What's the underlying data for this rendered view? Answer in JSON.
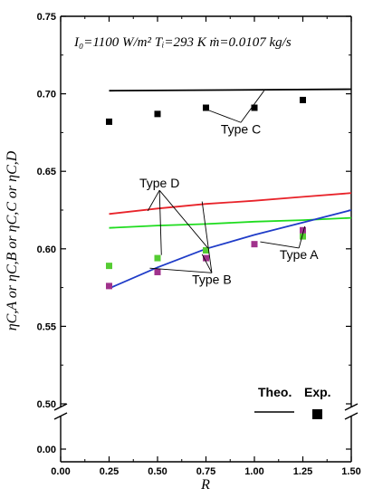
{
  "chart_data": {
    "type": "line",
    "header": "I₀=1100 W/m²   Tᵢ=293 K   ṁ=0.0107 kg/s",
    "xlabel": "R",
    "ylabel": "ηC,A  or  ηC,B  or  ηC,C  or  ηC,D",
    "xlim": [
      0,
      1.5
    ],
    "ylim_upper": [
      0.5,
      0.75
    ],
    "ylim_lower": [
      0.0,
      0.0
    ],
    "y_axis_broken": true,
    "grid": false,
    "x_ticks": [
      "0.00",
      "0.25",
      "0.50",
      "0.75",
      "1.00",
      "1.25",
      "1.50"
    ],
    "y_ticks_upper": [
      "0.50",
      "0.55",
      "0.60",
      "0.65",
      "0.70",
      "0.75"
    ],
    "y_ticks_lower": [
      "0.00"
    ],
    "theoretical": [
      {
        "name": "Type C",
        "color": "#000000",
        "x": [
          0.25,
          1.5
        ],
        "y": [
          0.702,
          0.703
        ]
      },
      {
        "name": "Type D",
        "color": "#e8232a",
        "x": [
          0.25,
          0.5,
          0.75,
          1.0,
          1.25,
          1.5
        ],
        "y": [
          0.6225,
          0.626,
          0.629,
          0.631,
          0.6335,
          0.636
        ]
      },
      {
        "name": "Type D",
        "color": "#1fdc1f",
        "x": [
          0.25,
          0.5,
          0.75,
          1.0,
          1.25,
          1.5
        ],
        "y": [
          0.6135,
          0.615,
          0.616,
          0.6175,
          0.6185,
          0.62
        ]
      },
      {
        "name": "Type A/B",
        "color": "#1f3cc8",
        "x": [
          0.25,
          0.5,
          0.75,
          1.0,
          1.25,
          1.5
        ],
        "y": [
          0.5745,
          0.588,
          0.6,
          0.609,
          0.617,
          0.625
        ]
      }
    ],
    "experimental": [
      {
        "name": "Type C",
        "color": "#000000",
        "x": [
          0.25,
          0.5,
          0.75,
          1.0,
          1.25
        ],
        "y": [
          0.682,
          0.687,
          0.691,
          0.691,
          0.696
        ]
      },
      {
        "name": "green",
        "color": "#55cc33",
        "x": [
          0.25,
          0.5,
          0.75,
          1.25
        ],
        "y": [
          0.589,
          0.594,
          0.599,
          0.608
        ]
      },
      {
        "name": "magenta",
        "color": "#a0328c",
        "x": [
          0.25,
          0.5,
          0.75,
          1.0,
          1.25
        ],
        "y": [
          0.576,
          0.585,
          0.594,
          0.603,
          0.612
        ]
      }
    ],
    "annotations": [
      {
        "text": "Type C",
        "x": 0.93,
        "y": 0.6745,
        "arrow_to": [
          [
            0.74,
            0.6905
          ],
          [
            1.05,
            0.702
          ]
        ]
      },
      {
        "text": "Type D",
        "x": 0.51,
        "y": 0.6395,
        "arrow_to": [
          [
            0.45,
            0.6245
          ],
          [
            0.52,
            0.596
          ],
          [
            0.76,
            0.6005
          ]
        ]
      },
      {
        "text": "Type B",
        "x": 0.78,
        "y": 0.5775,
        "arrow_to": [
          [
            0.46,
            0.5875
          ],
          [
            0.73,
            0.5965
          ],
          [
            0.73,
            0.6305
          ]
        ]
      },
      {
        "text": "Type A",
        "x": 1.23,
        "y": 0.5935,
        "arrow_to": [
          [
            1.03,
            0.6045
          ],
          [
            1.26,
            0.6145
          ]
        ]
      }
    ],
    "legend": {
      "theo_label": "Theo.",
      "exp_label": "Exp.",
      "placement": "bottom-right"
    }
  }
}
